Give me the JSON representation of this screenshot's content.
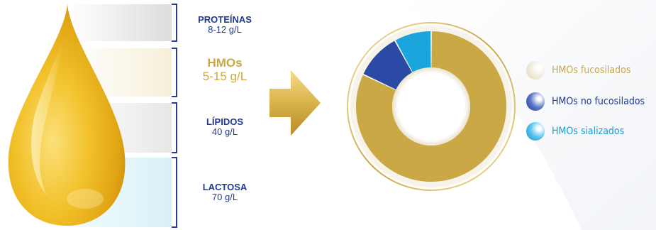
{
  "composition": [
    {
      "name": "PROTEÍNAS",
      "value": "8-12 g/L",
      "color": "#1f3a94"
    },
    {
      "name": "HMOs",
      "value": "5-15 g/L",
      "color": "#c9a845"
    },
    {
      "name": "LÍPIDOS",
      "value": "40 g/L",
      "color": "#1f3a94"
    },
    {
      "name": "LACTOSA",
      "value": "70 g/L",
      "color": "#1f3a94"
    }
  ],
  "donut": {
    "slices": [
      {
        "label": "HMOs fucosilados",
        "share": 0.82,
        "color": "#c9a845"
      },
      {
        "label": "HMOs no fucosilados",
        "share": 0.1,
        "color": "#2a4aa6"
      },
      {
        "label": "HMOs sializados",
        "share": 0.08,
        "color": "#1aa6dc"
      }
    ]
  },
  "legend": [
    {
      "label": "HMOs fucosilados",
      "color": "#c9a845",
      "icon": "cream-bubble-icon"
    },
    {
      "label": "HMOs no fucosilados",
      "color": "#1f3a94",
      "icon": "blue-bubble-icon"
    },
    {
      "label": "HMOs sializados",
      "color": "#1a9ad6",
      "icon": "cyan-bubble-icon"
    }
  ]
}
